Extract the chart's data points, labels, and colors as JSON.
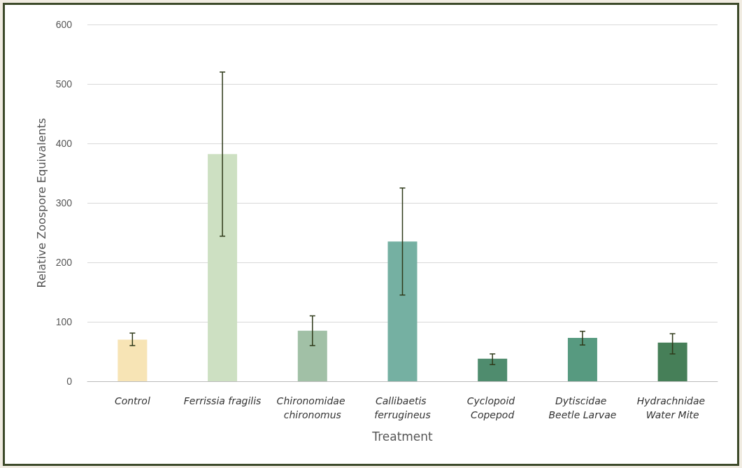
{
  "chart_data": {
    "type": "bar",
    "xlabel": "Treatment",
    "ylabel": "Relative Zoospore Equivalents",
    "categories": [
      "Control",
      "Ferrissia fragilis",
      "Chironomidae chironomus",
      "Callibaetis ferrugineus",
      "Cyclopoid Copepod",
      "Dytiscidae Beetle Larvae",
      "Hydrachnidae Water Mite"
    ],
    "values": [
      70,
      382,
      85,
      235,
      38,
      73,
      65
    ],
    "colors": [
      "#f7e4b5",
      "#cde0c2",
      "#a1c0a6",
      "#75b0a2",
      "#4f8c6e",
      "#579a80",
      "#467f58"
    ],
    "errors": [
      [
        60,
        81
      ],
      [
        244,
        520
      ],
      [
        60,
        110
      ],
      [
        145,
        325
      ],
      [
        28,
        46
      ],
      [
        61,
        84
      ],
      [
        46,
        80
      ]
    ],
    "ylim": [
      0,
      600
    ],
    "yticks": [
      0,
      100,
      200,
      300,
      400,
      500,
      600
    ],
    "grid": "y"
  }
}
